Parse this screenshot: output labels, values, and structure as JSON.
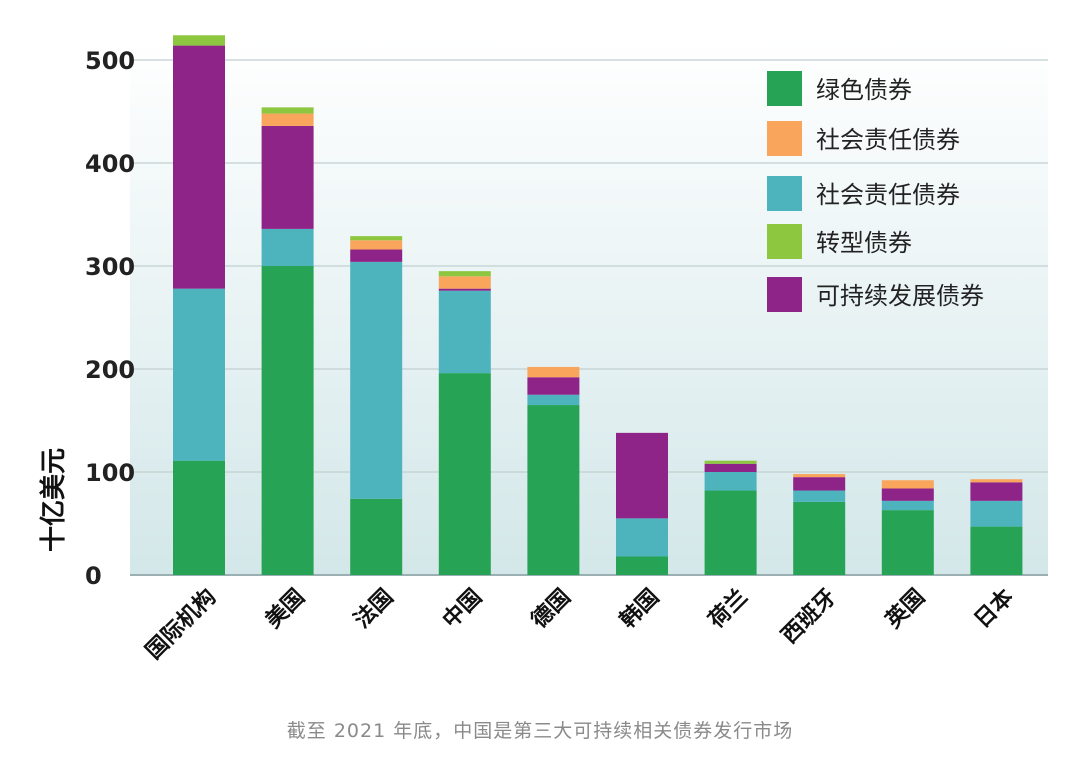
{
  "chart_data": {
    "type": "bar",
    "stacked": true,
    "ylabel": "十亿美元",
    "ylim": [
      0,
      500
    ],
    "yticks": [
      0,
      100,
      200,
      300,
      400,
      500
    ],
    "grid": true,
    "legend_position": "top-right",
    "categories": [
      "国际机构",
      "美国",
      "法国",
      "中国",
      "德国",
      "韩国",
      "荷兰",
      "西班牙",
      "英国",
      "日本"
    ],
    "series": [
      {
        "name": "绿色债券",
        "color": "#27a355",
        "values": [
          111,
          300,
          74,
          196,
          165,
          18,
          82,
          71,
          63,
          47
        ]
      },
      {
        "name": "社会责任债券",
        "color": "#4db3bd",
        "values": [
          167,
          36,
          230,
          80,
          10,
          37,
          18,
          11,
          9,
          25
        ]
      },
      {
        "name": "可持续发展债券",
        "color": "#8e2488",
        "values": [
          236,
          100,
          12,
          2,
          17,
          83,
          8,
          13,
          12,
          18
        ]
      },
      {
        "name": "社会责任债券",
        "color": "#f9a55c",
        "values": [
          0,
          12,
          9,
          12,
          10,
          0,
          0,
          3,
          8,
          3
        ]
      },
      {
        "name": "转型债券",
        "color": "#8dc63f",
        "values": [
          10,
          6,
          4,
          5,
          0,
          0,
          3,
          0,
          0,
          0
        ]
      }
    ],
    "legend": [
      {
        "name": "绿色债券",
        "color": "#27a355"
      },
      {
        "name": "社会责任债券",
        "color": "#f9a55c"
      },
      {
        "name": "社会责任债券",
        "color": "#4db3bd"
      },
      {
        "name": "转型债券",
        "color": "#8dc63f"
      },
      {
        "name": "可持续发展债券",
        "color": "#8e2488"
      }
    ]
  },
  "caption": "截至 2021 年底，中国是第三大可持续相关债券发行市场"
}
